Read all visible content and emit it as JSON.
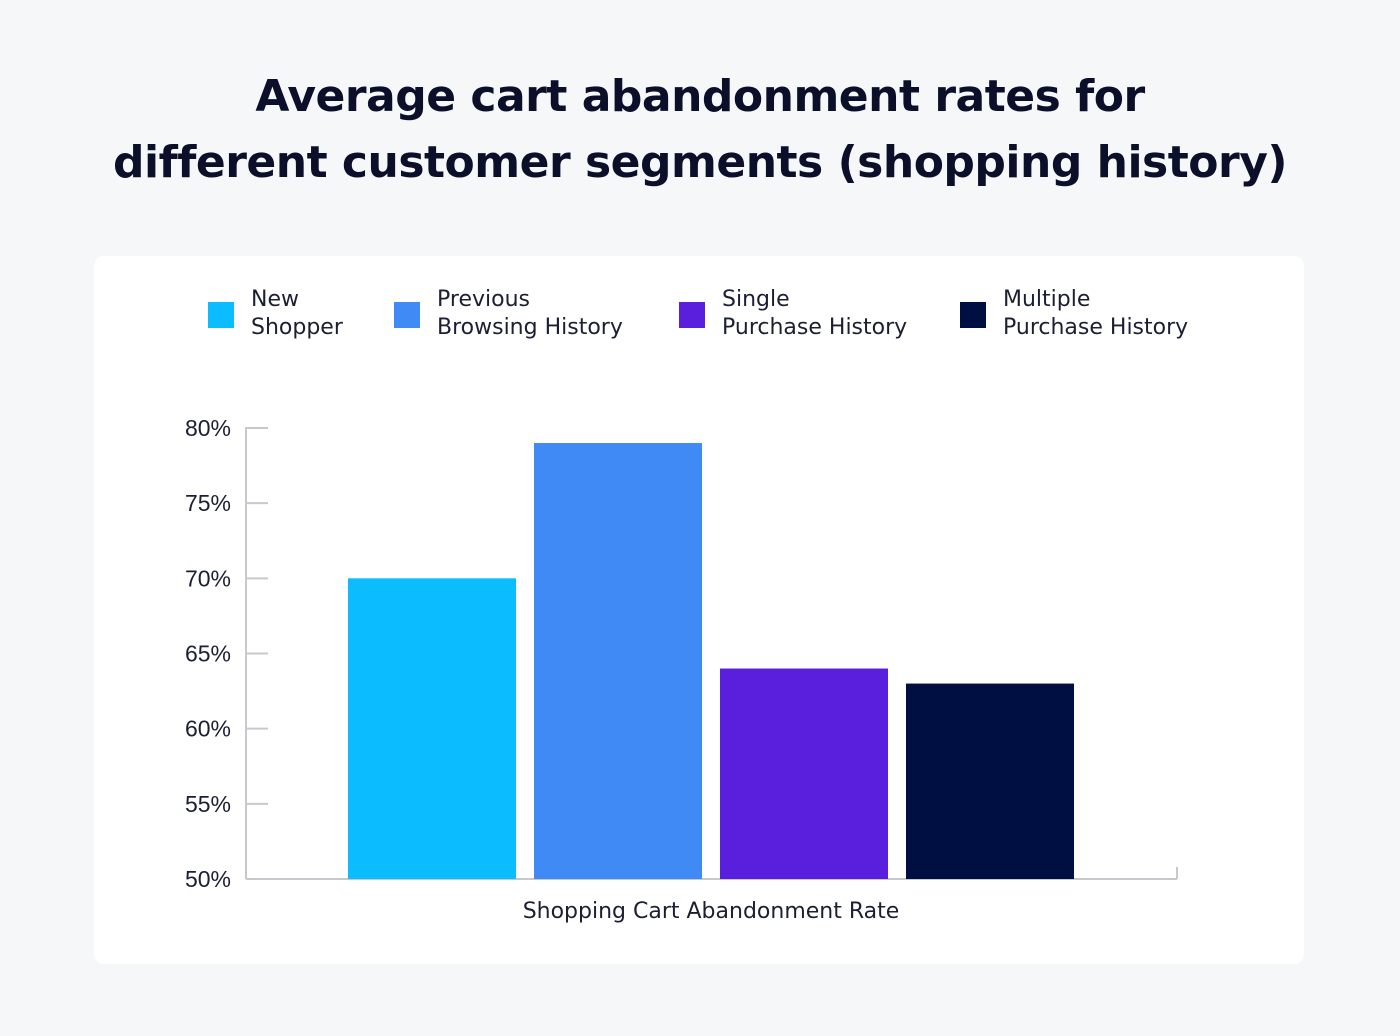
{
  "chart_data": {
    "type": "bar",
    "title_lines": [
      "Average cart abandonment rates for",
      "different customer segments (shopping history)"
    ],
    "xlabel": "Shopping Cart Abandonment Rate",
    "ylabel": "",
    "ylim": [
      50,
      80
    ],
    "y_ticks": [
      "80%",
      "75%",
      "70%",
      "65%",
      "60%",
      "55%",
      "50%"
    ],
    "y_tick_values": [
      80,
      75,
      70,
      65,
      60,
      55,
      50
    ],
    "categories": [
      "Shopping Cart Abandonment Rate"
    ],
    "series": [
      {
        "name_lines": [
          "New",
          "Shopper"
        ],
        "values": [
          70
        ],
        "color": "#0bbcff"
      },
      {
        "name_lines": [
          "Previous",
          "Browsing History"
        ],
        "values": [
          79
        ],
        "color": "#3f8af5"
      },
      {
        "name_lines": [
          "Single",
          "Purchase History"
        ],
        "values": [
          64
        ],
        "color": "#5a1fdc"
      },
      {
        "name_lines": [
          "Multiple",
          "Purchase History"
        ],
        "values": [
          63
        ],
        "color": "#000f42"
      }
    ],
    "grid": false,
    "legend_position": "top"
  }
}
